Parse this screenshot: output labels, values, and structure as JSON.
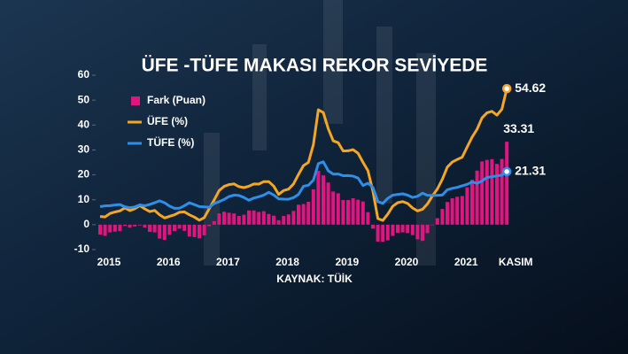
{
  "chart_data": {
    "type": "bar-line",
    "title": "ÜFE -TÜFE MAKASI REKOR SEVİYEDE",
    "source": "KAYNAK: TÜİK",
    "categories": [
      "2015",
      null,
      null,
      null,
      null,
      null,
      null,
      null,
      null,
      null,
      null,
      null,
      "2016",
      null,
      null,
      null,
      null,
      null,
      null,
      null,
      null,
      null,
      null,
      null,
      "2017",
      null,
      null,
      null,
      null,
      null,
      null,
      null,
      null,
      null,
      null,
      null,
      "2018",
      null,
      null,
      null,
      null,
      null,
      null,
      null,
      null,
      null,
      null,
      null,
      "2019",
      null,
      null,
      null,
      null,
      null,
      null,
      null,
      null,
      null,
      null,
      null,
      "2020",
      null,
      null,
      null,
      null,
      null,
      null,
      null,
      null,
      null,
      null,
      null,
      "2021",
      null,
      null,
      null,
      null,
      null,
      null,
      null,
      null,
      null,
      "KASIM"
    ],
    "series": [
      {
        "name": "Fark (Puan)",
        "type": "bar",
        "color": "#e0157f",
        "values": [
          -4.0,
          -4.5,
          -3.1,
          -2.8,
          -2.6,
          -0.5,
          -1.2,
          -0.7,
          -0.3,
          -1.2,
          -2.9,
          -3.1,
          -5.6,
          -6.1,
          -4.1,
          -2.6,
          -1.6,
          -2.5,
          -4.8,
          -5.0,
          -5.5,
          -4.3,
          -0.6,
          1.4,
          4.5,
          5.2,
          4.8,
          4.5,
          3.5,
          4.0,
          5.7,
          5.7,
          5.1,
          5.4,
          4.3,
          3.6,
          1.8,
          3.5,
          4.1,
          5.5,
          8.0,
          8.3,
          9.2,
          14.2,
          21.6,
          19.8,
          16.9,
          13.3,
          12.6,
          9.9,
          9.9,
          10.6,
          10.0,
          9.3,
          5.0,
          -1.6,
          -6.8,
          -6.9,
          -6.3,
          -4.5,
          -3.3,
          -3.1,
          -3.4,
          -4.2,
          -5.9,
          -6.5,
          -3.4,
          -0.2,
          2.6,
          6.3,
          9.1,
          10.6,
          11.2,
          11.5,
          15.0,
          18.0,
          21.7,
          25.4,
          26.0,
          26.3,
          24.4,
          26.4,
          33.31
        ]
      },
      {
        "name": "ÜFE (%)",
        "type": "line",
        "color": "#f5a623",
        "values": [
          3.28,
          3.1,
          4.5,
          5.11,
          5.52,
          6.73,
          5.62,
          6.42,
          7.65,
          6.35,
          5.25,
          5.71,
          3.96,
          2.67,
          3.37,
          3.98,
          4.97,
          5.13,
          3.96,
          3.03,
          1.78,
          2.84,
          6.41,
          9.94,
          13.69,
          15.36,
          16.09,
          16.37,
          15.26,
          14.87,
          15.45,
          16.34,
          16.28,
          17.28,
          17.3,
          15.47,
          12.14,
          13.71,
          14.28,
          16.37,
          20.16,
          23.71,
          25.0,
          32.13,
          46.15,
          45.01,
          38.54,
          33.64,
          32.93,
          29.59,
          29.64,
          30.12,
          28.71,
          25.04,
          21.66,
          13.45,
          2.45,
          1.7,
          4.26,
          7.36,
          8.84,
          9.26,
          8.5,
          6.71,
          5.53,
          6.17,
          8.33,
          11.53,
          14.33,
          18.2,
          23.11,
          25.15,
          26.16,
          27.09,
          31.2,
          35.17,
          38.33,
          42.89,
          44.92,
          45.52,
          43.96,
          46.31,
          54.62
        ]
      },
      {
        "name": "TÜFE (%)",
        "type": "line",
        "color": "#2e8ee8",
        "values": [
          7.24,
          7.55,
          7.61,
          7.91,
          8.09,
          7.2,
          6.81,
          7.14,
          7.95,
          7.58,
          8.1,
          8.81,
          9.58,
          8.78,
          7.46,
          6.57,
          6.58,
          7.64,
          8.79,
          8.05,
          7.28,
          7.16,
          7.0,
          8.53,
          9.22,
          10.13,
          11.29,
          11.87,
          11.72,
          10.9,
          9.79,
          10.68,
          11.2,
          11.9,
          12.98,
          11.92,
          10.35,
          10.26,
          10.23,
          10.85,
          12.15,
          15.39,
          15.85,
          17.9,
          24.52,
          25.24,
          21.62,
          20.3,
          20.35,
          19.67,
          19.71,
          19.5,
          18.71,
          15.72,
          16.65,
          15.01,
          9.26,
          8.55,
          10.56,
          11.84,
          12.15,
          12.37,
          11.86,
          10.94,
          11.39,
          12.62,
          11.76,
          11.77,
          11.75,
          11.89,
          14.03,
          14.6,
          14.97,
          15.61,
          16.19,
          17.14,
          16.59,
          17.53,
          18.95,
          19.25,
          19.58,
          19.89,
          21.31
        ]
      }
    ],
    "ylim": [
      -10,
      60
    ],
    "yticks": [
      -10,
      0,
      10,
      20,
      30,
      40,
      50,
      60
    ],
    "grid": false
  }
}
